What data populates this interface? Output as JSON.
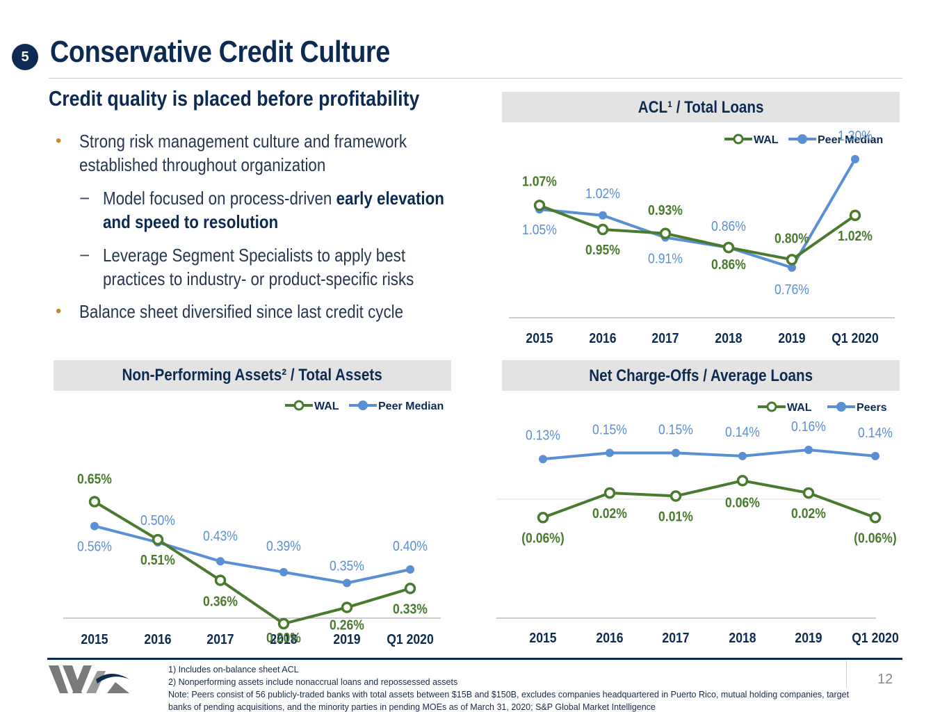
{
  "header": {
    "badge": "5",
    "title": "Conservative Credit Culture"
  },
  "content": {
    "subtitle": "Credit quality is placed before profitability",
    "bullet1_line1": "Strong risk management culture and framework",
    "bullet1_line2": "established throughout organization",
    "sub1_pre": "Model focused on process-driven ",
    "sub1_bold": "early elevation",
    "sub1_line2": "and speed to resolution",
    "sub2_line1": "Leverage Segment Specialists to apply best",
    "sub2_line2": "practices to industry- or product-specific risks",
    "bullet2": "Balance sheet diversified since last credit cycle",
    "bullet_marker": "•",
    "dash_marker": "−"
  },
  "footer": {
    "note1": "1) Includes on-balance sheet ACL",
    "note2": "2) Nonperforming assets include nonaccrual loans and repossessed assets",
    "note3": "Note: Peers consist of 56 publicly-traded banks with total assets between $15B and $150B, excludes companies headquartered in Puerto Rico, mutual holding companies, target",
    "note4": "banks of pending acquisitions, and the minority parties in pending MOEs as of March 31, 2020; S&P Global Market Intelligence",
    "page_number": "12",
    "logo_text": "WA"
  },
  "colors": {
    "wal": "#4a7a2e",
    "peer": "#5b8fd4",
    "navy": "#0d2b52"
  },
  "chart_data": [
    {
      "id": "acl",
      "type": "line",
      "title": "ACL¹ / Total Loans",
      "categories": [
        "2015",
        "2016",
        "2017",
        "2018",
        "2019",
        "Q1 2020"
      ],
      "series": [
        {
          "name": "WAL",
          "values": [
            1.07,
            0.95,
            0.93,
            0.86,
            0.8,
            1.02
          ],
          "labels": [
            "1.07%",
            "0.95%",
            "0.93%",
            "0.86%",
            "0.80%",
            "1.02%"
          ]
        },
        {
          "name": "Peer Median",
          "values": [
            1.05,
            1.02,
            0.91,
            0.86,
            0.76,
            1.3
          ],
          "labels": [
            "1.05%",
            "1.02%",
            "0.91%",
            "0.86%",
            "0.76%",
            "1.30%"
          ]
        }
      ],
      "ylim": [
        0.5,
        1.4
      ],
      "legend": "top-right"
    },
    {
      "id": "npa",
      "type": "line",
      "title": "Non-Performing Assets² / Total Assets",
      "categories": [
        "2015",
        "2016",
        "2017",
        "2018",
        "2019",
        "Q1 2020"
      ],
      "series": [
        {
          "name": "WAL",
          "values": [
            0.65,
            0.51,
            0.36,
            0.2,
            0.26,
            0.33
          ],
          "labels": [
            "0.65%",
            "0.51%",
            "0.36%",
            "0.20%",
            "0.26%",
            "0.33%"
          ]
        },
        {
          "name": "Peer Median",
          "values": [
            0.56,
            0.5,
            0.43,
            0.39,
            0.35,
            0.4
          ],
          "labels": [
            "0.56%",
            "0.50%",
            "0.43%",
            "0.39%",
            "0.35%",
            "0.40%"
          ]
        }
      ],
      "ylim": [
        0.0,
        1.0
      ],
      "legend": "top-right"
    },
    {
      "id": "nco",
      "type": "line",
      "title": "Net Charge-Offs / Average Loans",
      "categories": [
        "2015",
        "2016",
        "2017",
        "2018",
        "2019",
        "Q1 2020"
      ],
      "series": [
        {
          "name": "WAL",
          "values": [
            -0.06,
            0.02,
            0.01,
            0.06,
            0.02,
            -0.06
          ],
          "labels": [
            "(0.06%)",
            "0.02%",
            "0.01%",
            "0.06%",
            "0.02%",
            "(0.06%)"
          ]
        },
        {
          "name": "Peers",
          "values": [
            0.13,
            0.15,
            0.15,
            0.14,
            0.16,
            0.14
          ],
          "labels": [
            "0.13%",
            "0.15%",
            "0.15%",
            "0.14%",
            "0.16%",
            "0.14%"
          ]
        }
      ],
      "ylim": [
        -0.4,
        0.3
      ],
      "legend": "top-right"
    }
  ]
}
